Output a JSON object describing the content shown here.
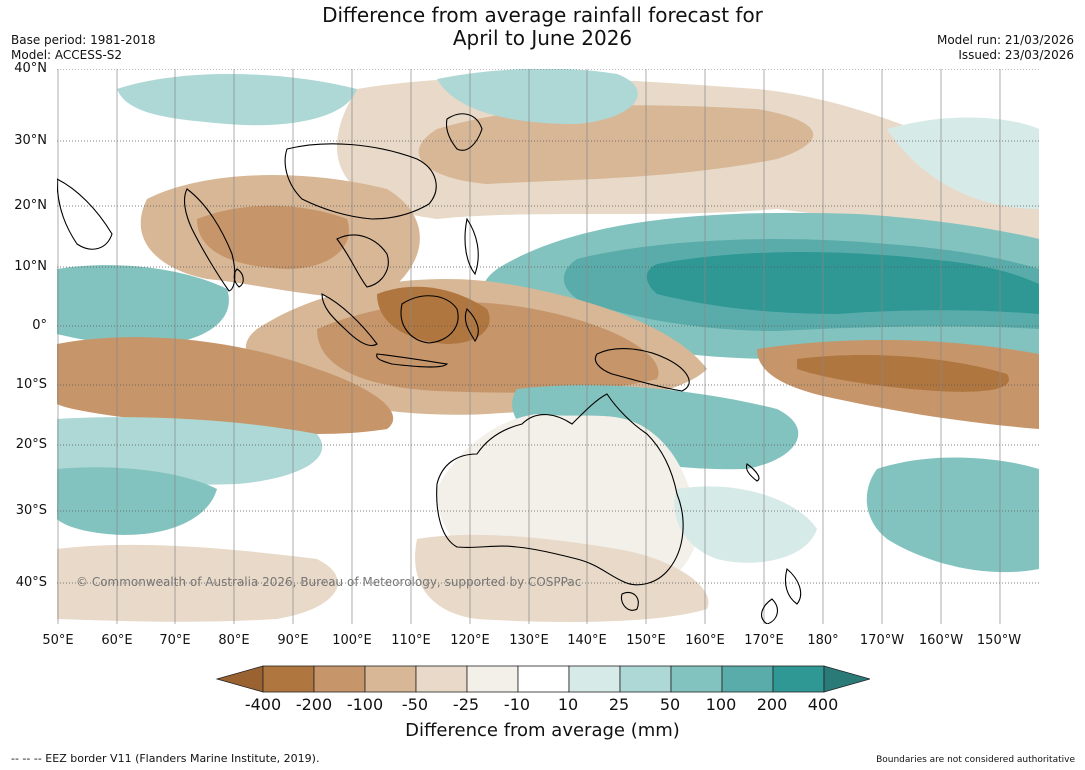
{
  "title": {
    "line1": "Difference from average rainfall forecast for",
    "line2": "April to June 2026"
  },
  "meta": {
    "base_period": "Base period: 1981-2018",
    "model": "Model: ACCESS-S2",
    "model_run": "Model run: 21/03/2026",
    "issued": "Issued: 23/03/2026"
  },
  "copyright": "© Commonwealth of Australia 2026, Bureau of Meteorology, supported by COSPPac",
  "lat_labels": [
    "40°N",
    "30°N",
    "20°N",
    "10°N",
    "0°",
    "10°S",
    "20°S",
    "30°S",
    "40°S"
  ],
  "lon_labels": [
    "50°E",
    "60°E",
    "70°E",
    "80°E",
    "90°E",
    "100°E",
    "110°E",
    "120°E",
    "130°E",
    "140°E",
    "150°E",
    "160°E",
    "170°E",
    "180°",
    "170°W",
    "160°W",
    "150°W"
  ],
  "legend": {
    "ticks": [
      "-400",
      "-200",
      "-100",
      "-50",
      "-25",
      "-10",
      "10",
      "25",
      "50",
      "100",
      "200",
      "400"
    ],
    "colors": {
      "lt_-400": "#9a6230",
      "-400_-200": "#b07640",
      "-200_-100": "#c6956a",
      "-100_-50": "#d7b796",
      "-50_-25": "#e8d9c8",
      "-25_-10": "#f3efe9",
      "-10_10": "#ffffff",
      "10_25": "#d6eae8",
      "25_50": "#add8d5",
      "50_100": "#83c3bf",
      "100_200": "#5aacaa",
      "200_400": "#2f9894",
      "gt_400": "#2a7a78"
    },
    "label": "Difference from average (mm)"
  },
  "footer": {
    "left": "--  --  -- EEZ border V11 (Flanders Marine Institute, 2019).",
    "right": "Boundaries are not considered authoritative"
  }
}
